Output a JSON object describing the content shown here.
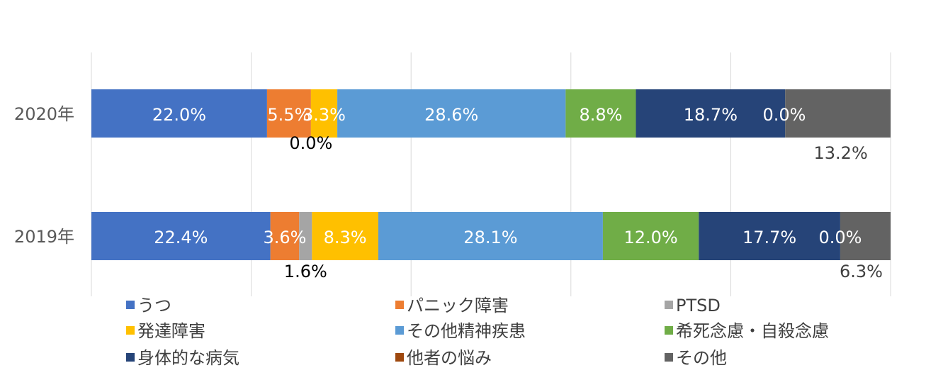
{
  "chart_data": {
    "type": "bar",
    "orientation": "horizontal",
    "stacked": true,
    "percent_stacked": true,
    "categories": [
      "2020年",
      "2019年"
    ],
    "xlim": [
      0,
      100
    ],
    "grid": true,
    "legend_position": "bottom",
    "series": [
      {
        "name": "うつ",
        "color": "#4472C4",
        "values": [
          22.0,
          22.4
        ],
        "labels": [
          "22.0%",
          "22.4%"
        ],
        "label_color": "#ffffff"
      },
      {
        "name": "パニック障害",
        "color": "#ED7D31",
        "values": [
          5.5,
          3.6
        ],
        "labels": [
          "5.5%",
          "3.6%"
        ],
        "label_color": "#ffffff"
      },
      {
        "name": "PTSD",
        "color": "#A5A5A5",
        "values": [
          0.0,
          1.6
        ],
        "labels": [
          "0.0%",
          "1.6%"
        ],
        "label_color": "#000000",
        "label_outside": true
      },
      {
        "name": "発達障害",
        "color": "#FFC000",
        "values": [
          3.3,
          8.3
        ],
        "labels": [
          "3.3%",
          "8.3%"
        ],
        "label_color": "#ffffff"
      },
      {
        "name": "その他精神疾患",
        "color": "#5B9BD5",
        "values": [
          28.6,
          28.1
        ],
        "labels": [
          "28.6%",
          "28.1%"
        ],
        "label_color": "#ffffff"
      },
      {
        "name": "希死念慮・自殺念慮",
        "color": "#70AD47",
        "values": [
          8.8,
          12.0
        ],
        "labels": [
          "8.8%",
          "12.0%"
        ],
        "label_color": "#ffffff"
      },
      {
        "name": "身体的な病気",
        "color": "#264478",
        "values": [
          18.7,
          17.7
        ],
        "labels": [
          "18.7%",
          "17.7%"
        ],
        "label_color": "#ffffff"
      },
      {
        "name": "他者の悩み",
        "color": "#9E480E",
        "values": [
          0.0,
          0.0
        ],
        "labels": [
          "0.0%",
          "0.0%"
        ],
        "label_color": "#ffffff"
      },
      {
        "name": "その他",
        "color": "#636363",
        "values": [
          13.2,
          6.3
        ],
        "labels": [
          "13.2%",
          "6.3%"
        ],
        "label_color": "#404040",
        "label_outside": true
      }
    ]
  }
}
